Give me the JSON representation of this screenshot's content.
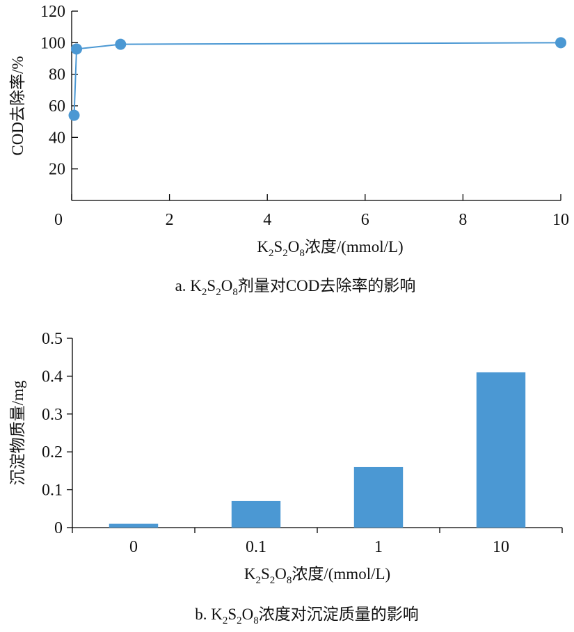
{
  "colors": {
    "series": "#4b98d3",
    "axis": "#000000",
    "text": "#111111"
  },
  "chart_data": [
    {
      "type": "line",
      "xlabel_parts": [
        "K",
        "2",
        "S",
        "2",
        "O",
        "8",
        "浓度/(mmol/L)"
      ],
      "ylabel": "COD去除率/%",
      "caption_prefix": "a. ",
      "caption_parts": [
        "K",
        "2",
        "S",
        "2",
        "O",
        "8",
        "剂量对COD去除率的影响"
      ],
      "xlim": [
        0,
        10
      ],
      "ylim": [
        0,
        120
      ],
      "x_ticks": [
        0,
        2,
        4,
        6,
        8,
        10
      ],
      "y_ticks": [
        20,
        40,
        60,
        80,
        100,
        120
      ],
      "x_tick_labels": [
        "0",
        "2",
        "4",
        "6",
        "8",
        "10"
      ],
      "y_tick_labels": [
        "20",
        "40",
        "60",
        "80",
        "100",
        "120"
      ],
      "x": [
        0.05,
        0.1,
        1.0,
        10.0
      ],
      "y": [
        54,
        96,
        99,
        100
      ]
    },
    {
      "type": "bar",
      "xlabel_parts": [
        "K",
        "2",
        "S",
        "2",
        "O",
        "8",
        "浓度/(mmol/L)"
      ],
      "ylabel": "沉淀物质量/mg",
      "caption_prefix": "b. ",
      "caption_parts": [
        "K",
        "2",
        "S",
        "2",
        "O",
        "8",
        "浓度对沉淀质量的影响"
      ],
      "categories": [
        "0",
        "0.1",
        "1",
        "10"
      ],
      "values": [
        0.01,
        0.07,
        0.16,
        0.41
      ],
      "ylim": [
        0,
        0.5
      ],
      "y_ticks": [
        0,
        0.1,
        0.2,
        0.3,
        0.4,
        0.5
      ],
      "y_tick_labels": [
        "0",
        "0.1",
        "0.2",
        "0.3",
        "0.4",
        "0.5"
      ]
    }
  ]
}
